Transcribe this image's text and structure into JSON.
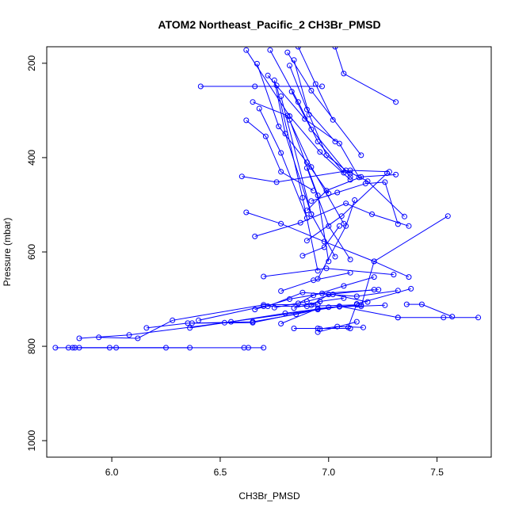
{
  "chart_data": {
    "type": "line",
    "title": "ATOM2 Northeast_Pacific_2 CH3Br_PMSD",
    "xlabel": "CH3Br_PMSD",
    "ylabel": "Pressure (mbar)",
    "xlim": [
      5.7,
      7.75
    ],
    "ylim": [
      1035,
      165
    ],
    "y_inverted": true,
    "x_ticks": [
      6.0,
      6.5,
      7.0,
      7.5
    ],
    "x_tick_labels": [
      "6.0",
      "6.5",
      "7.0",
      "7.5"
    ],
    "y_ticks": [
      200,
      400,
      600,
      800,
      1000
    ],
    "y_tick_labels": [
      "200",
      "400",
      "600",
      "800",
      "1000"
    ],
    "grid": false,
    "legend": "none",
    "series_color": "#0000ff",
    "marker": "open-circle",
    "profiles": [
      {
        "x": [
          5.74,
          5.82,
          6.02,
          6.25
        ],
        "y": [
          803,
          803,
          803,
          803
        ]
      },
      {
        "x": [
          5.8,
          5.85,
          5.99,
          6.36
        ],
        "y": [
          803,
          803,
          803,
          803
        ]
      },
      {
        "x": [
          6.61,
          6.63,
          6.7,
          5.83
        ],
        "y": [
          803,
          803,
          803,
          803
        ]
      },
      {
        "x": [
          5.85,
          6.08,
          6.52,
          7.05
        ],
        "y": [
          783,
          776,
          750,
          716
        ]
      },
      {
        "x": [
          5.94,
          6.12,
          6.28,
          6.7,
          6.95
        ],
        "y": [
          781,
          783,
          745,
          712,
          711
        ]
      },
      {
        "x": [
          6.16,
          6.35,
          6.65,
          7.0,
          7.26
        ],
        "y": [
          761,
          751,
          750,
          717,
          713
        ]
      },
      {
        "x": [
          6.36,
          6.55,
          6.8,
          7.05,
          7.32
        ],
        "y": [
          761,
          748,
          730,
          715,
          739
        ]
      },
      {
        "x": [
          6.37,
          6.65,
          6.85,
          6.95
        ],
        "y": [
          751,
          748,
          732,
          722
        ]
      },
      {
        "x": [
          6.4,
          6.7,
          6.9,
          7.13
        ],
        "y": [
          745,
          715,
          715,
          712
        ]
      },
      {
        "x": [
          6.78,
          6.95,
          7.15
        ],
        "y": [
          752,
          720,
          712
        ]
      },
      {
        "x": [
          6.84,
          6.95,
          7.1
        ],
        "y": [
          762,
          762,
          762
        ]
      },
      {
        "x": [
          6.96,
          7.04,
          7.16
        ],
        "y": [
          763,
          758,
          760
        ]
      },
      {
        "x": [
          6.95,
          7.13
        ],
        "y": [
          770,
          748
        ]
      },
      {
        "x": [
          7.32,
          7.53,
          7.69
        ],
        "y": [
          739,
          739,
          739
        ]
      },
      {
        "x": [
          7.36,
          7.43,
          7.57
        ],
        "y": [
          711,
          711,
          737
        ]
      },
      {
        "x": [
          7.09,
          7.13,
          7.38
        ],
        "y": [
          760,
          710,
          678
        ]
      },
      {
        "x": [
          6.66,
          6.82,
          6.97,
          7.23
        ],
        "y": [
          722,
          700,
          688,
          680
        ]
      },
      {
        "x": [
          6.7,
          6.99,
          7.3
        ],
        "y": [
          652,
          635,
          648
        ]
      },
      {
        "x": [
          6.78,
          6.93,
          7.1
        ],
        "y": [
          683,
          660,
          644
        ]
      },
      {
        "x": [
          6.75,
          6.9,
          7.02,
          7.18
        ],
        "y": [
          718,
          705,
          690,
          706
        ]
      },
      {
        "x": [
          6.86,
          6.93,
          7.07,
          7.21
        ],
        "y": [
          709,
          692,
          672,
          653
        ]
      },
      {
        "x": [
          6.84,
          6.96,
          7.07
        ],
        "y": [
          719,
          705,
          698
        ]
      },
      {
        "x": [
          6.72,
          6.88,
          7.13,
          7.32
        ],
        "y": [
          715,
          686,
          694,
          682
        ]
      },
      {
        "x": [
          7.15,
          7.21,
          7.37
        ],
        "y": [
          715,
          620,
          653
        ]
      },
      {
        "x": [
          6.92,
          7.0,
          7.21
        ],
        "y": [
          713,
          690,
          680
        ]
      },
      {
        "x": [
          6.62,
          6.78,
          6.98,
          7.21,
          7.55
        ],
        "y": [
          516,
          540,
          578,
          620,
          524
        ]
      },
      {
        "x": [
          6.66,
          6.87,
          7.08,
          7.2,
          7.37
        ],
        "y": [
          567,
          538,
          497,
          520,
          545
        ]
      },
      {
        "x": [
          6.92,
          7.04,
          7.17,
          7.26,
          7.32
        ],
        "y": [
          492,
          474,
          455,
          452,
          541
        ]
      },
      {
        "x": [
          7.08,
          7.18,
          7.35
        ],
        "y": [
          427,
          450,
          525
        ]
      },
      {
        "x": [
          6.88,
          6.98,
          7.05
        ],
        "y": [
          608,
          590,
          545
        ]
      },
      {
        "x": [
          6.9,
          7.06,
          7.27
        ],
        "y": [
          576,
          524,
          433
        ]
      },
      {
        "x": [
          6.9,
          6.99,
          7.15,
          7.31
        ],
        "y": [
          512,
          470,
          441,
          436
        ]
      },
      {
        "x": [
          6.95,
          7.08,
          7.12
        ],
        "y": [
          657,
          545,
          490
        ]
      },
      {
        "x": [
          6.6,
          6.76,
          7.1,
          7.28
        ],
        "y": [
          440,
          452,
          427,
          430
        ]
      },
      {
        "x": [
          6.62,
          6.71,
          6.78,
          6.93
        ],
        "y": [
          321,
          355,
          430,
          470
        ]
      },
      {
        "x": [
          6.65,
          6.81,
          6.92,
          7.07
        ],
        "y": [
          282,
          311,
          420,
          540
        ]
      },
      {
        "x": [
          6.41,
          6.66,
          6.97
        ],
        "y": [
          249,
          249,
          249
        ]
      },
      {
        "x": [
          6.67,
          6.77,
          6.9,
          7.0
        ],
        "y": [
          201,
          334,
          410,
          476
        ]
      },
      {
        "x": [
          6.73,
          6.86,
          6.95,
          7.07
        ],
        "y": [
          172,
          282,
          366,
          432
        ]
      },
      {
        "x": [
          6.62,
          6.82,
          6.96,
          7.1
        ],
        "y": [
          172,
          312,
          388,
          447
        ]
      },
      {
        "x": [
          6.84,
          6.91,
          6.99,
          7.1
        ],
        "y": [
          193,
          309,
          395,
          434
        ]
      },
      {
        "x": [
          6.72,
          6.89,
          7.05,
          7.14
        ],
        "y": [
          226,
          318,
          370,
          442
        ]
      },
      {
        "x": [
          6.81,
          6.92,
          7.15
        ],
        "y": [
          177,
          258,
          395
        ]
      },
      {
        "x": [
          6.82,
          6.9,
          7.03
        ],
        "y": [
          205,
          298,
          366
        ]
      },
      {
        "x": [
          6.83,
          6.92,
          7.1
        ],
        "y": [
          260,
          340,
          441
        ]
      },
      {
        "x": [
          6.86,
          6.94,
          7.02
        ],
        "y": [
          165,
          244,
          320
        ]
      },
      {
        "x": [
          7.03,
          7.07,
          7.31
        ],
        "y": [
          165,
          222,
          282
        ]
      },
      {
        "x": [
          6.75,
          6.8,
          6.92
        ],
        "y": [
          236,
          349,
          520
        ]
      },
      {
        "x": [
          6.76,
          6.88,
          6.95
        ],
        "y": [
          247,
          485,
          640
        ]
      },
      {
        "x": [
          6.78,
          6.92,
          7.03
        ],
        "y": [
          270,
          520,
          610
        ]
      },
      {
        "x": [
          6.68,
          6.78,
          6.9
        ],
        "y": [
          296,
          390,
          528
        ]
      },
      {
        "x": [
          6.82,
          6.95,
          7.0
        ],
        "y": [
          320,
          480,
          620
        ]
      },
      {
        "x": [
          6.9,
          7.0,
          7.1
        ],
        "y": [
          422,
          545,
          616
        ]
      }
    ]
  }
}
